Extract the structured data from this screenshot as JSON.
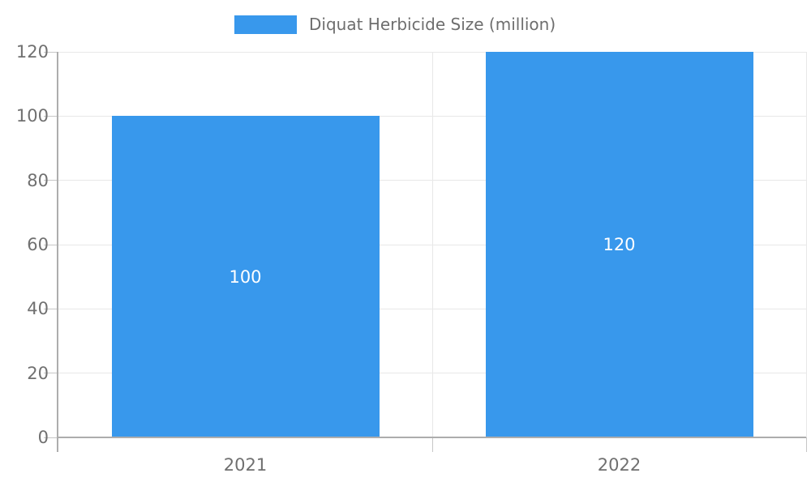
{
  "legend": {
    "label": "Diquat Herbicide Size (million)"
  },
  "chart_data": {
    "type": "bar",
    "title": "",
    "xlabel": "",
    "ylabel": "",
    "categories": [
      "2021",
      "2022"
    ],
    "series": [
      {
        "name": "Diquat Herbicide Size (million)",
        "values": [
          100,
          120
        ],
        "value_labels": [
          "100",
          "120"
        ]
      }
    ],
    "ylim": [
      0,
      120
    ],
    "yticks": [
      0,
      20,
      40,
      60,
      80,
      100,
      120
    ],
    "grid": true,
    "legend_position": "top",
    "colors": {
      "bar": "#3898ec",
      "gridline": "#e8e8e8",
      "axis_line": "#adadad",
      "tick": "#c6c6c6",
      "axis_text": "#707070",
      "legend_text": "#6e6e6e",
      "value_text": "#ffffff"
    }
  }
}
